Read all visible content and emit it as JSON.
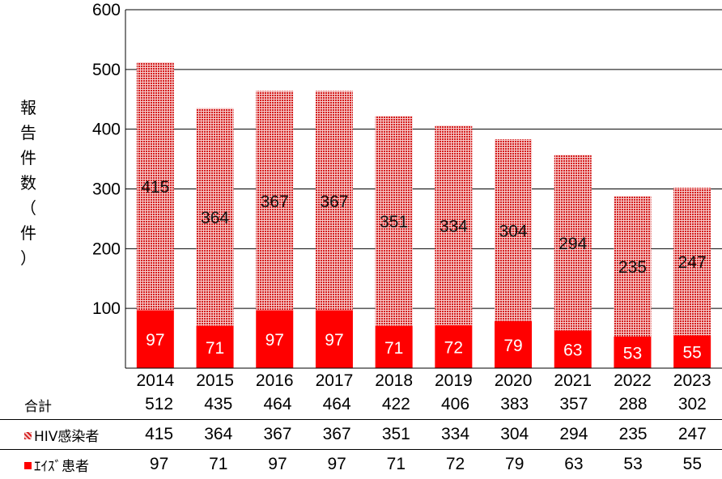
{
  "chart_data": {
    "type": "bar",
    "stacked": true,
    "categories": [
      "2014",
      "2015",
      "2016",
      "2017",
      "2018",
      "2019",
      "2020",
      "2021",
      "2022",
      "2023"
    ],
    "series": [
      {
        "name": "エイズ患者",
        "values": [
          97,
          71,
          97,
          97,
          71,
          72,
          79,
          63,
          53,
          55
        ],
        "color": "#ff0000",
        "pattern": "solid"
      },
      {
        "name": "HIV感染者",
        "values": [
          415,
          364,
          367,
          367,
          351,
          334,
          304,
          294,
          235,
          247
        ],
        "color": "#e03030",
        "pattern": "dotted"
      }
    ],
    "ylabel": "報告件数（件）",
    "ylabel_chars": [
      "報",
      "告",
      "件",
      "数",
      "（",
      "件",
      "）"
    ],
    "ylim": [
      0,
      600
    ],
    "yticks": [
      100,
      200,
      300,
      400,
      500,
      600
    ],
    "grid": true,
    "table": {
      "total_label": "合計",
      "totals": [
        512,
        435,
        464,
        464,
        422,
        406,
        383,
        357,
        288,
        302
      ],
      "hiv_label": "HIV感染者",
      "aids_label": "ｴｲｽﾞ患者"
    }
  }
}
